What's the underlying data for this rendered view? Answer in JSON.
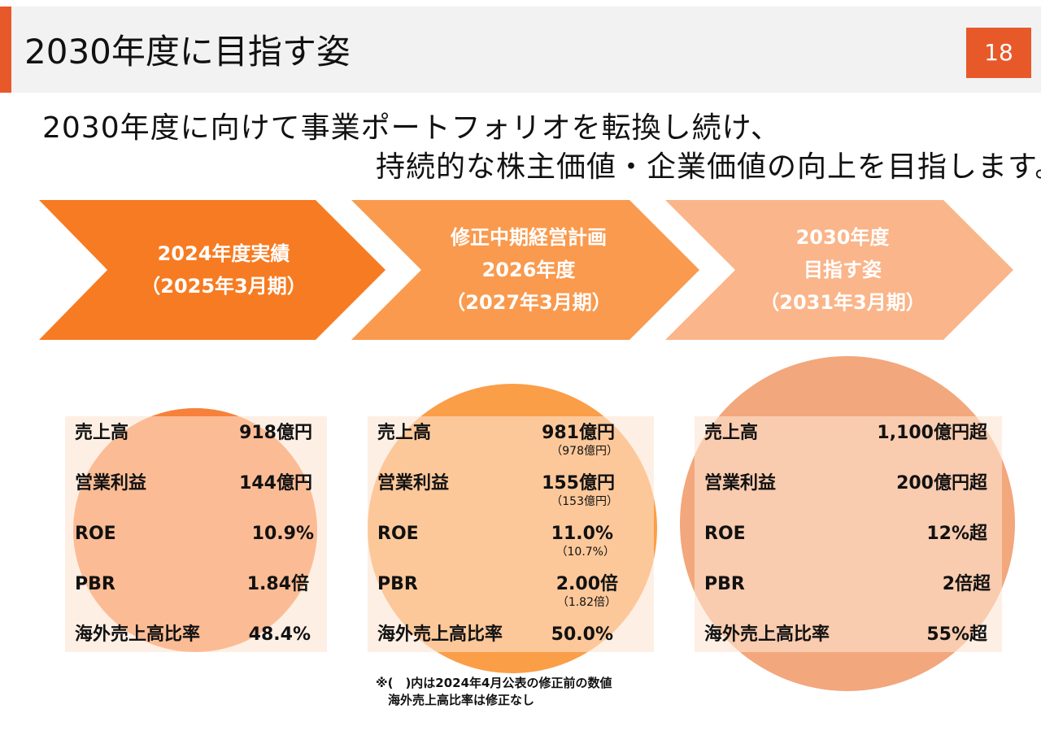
{
  "header": {
    "title": "2030年度に目指す姿",
    "page_number": "18"
  },
  "subtitle": {
    "line1": "2030年度に向けて事業ポートフォリオを転換し続け、",
    "line2": "持続的な株主価値・企業価値の向上を目指します。"
  },
  "colors": {
    "accent": "#e8592a",
    "chevron1": "#f77b22",
    "chevron2": "#f99a4e",
    "chevron3": "#fab58a",
    "circle1": "#f7813a",
    "circle2": "#fb9e48",
    "circle3": "#f2a77c"
  },
  "phases": [
    {
      "lines": [
        "2024年度実績",
        "（2025年3月期）"
      ],
      "metrics": [
        {
          "label": "売上高",
          "value": "918億円"
        },
        {
          "label": "営業利益",
          "value": "144億円"
        },
        {
          "label": "ROE",
          "value": "10.9%"
        },
        {
          "label": "PBR",
          "value": "1.84倍"
        },
        {
          "label": "海外売上高比率",
          "value": "48.4%"
        }
      ]
    },
    {
      "lines": [
        "修正中期経営計画",
        "2026年度",
        "（2027年3月期）"
      ],
      "metrics": [
        {
          "label": "売上高",
          "value": "981億円",
          "previous": "（978億円）"
        },
        {
          "label": "営業利益",
          "value": "155億円",
          "previous": "（153億円）"
        },
        {
          "label": "ROE",
          "value": "11.0%",
          "previous": "（10.7%）"
        },
        {
          "label": "PBR",
          "value": "2.00倍",
          "previous": "（1.82倍）"
        },
        {
          "label": "海外売上高比率",
          "value": "50.0%"
        }
      ]
    },
    {
      "lines": [
        "2030年度",
        "目指す姿",
        "（2031年3月期）"
      ],
      "metrics": [
        {
          "label": "売上高",
          "value": "1,100億円超"
        },
        {
          "label": "営業利益",
          "value": "200億円超"
        },
        {
          "label": "ROE",
          "value": "12%超"
        },
        {
          "label": "PBR",
          "value": "2倍超"
        },
        {
          "label": "海外売上高比率",
          "value": "55%超"
        }
      ]
    }
  ],
  "footnote": {
    "line1": "※(　)内は2024年4月公表の修正前の数値",
    "line2": "　海外売上高比率は修正なし"
  }
}
